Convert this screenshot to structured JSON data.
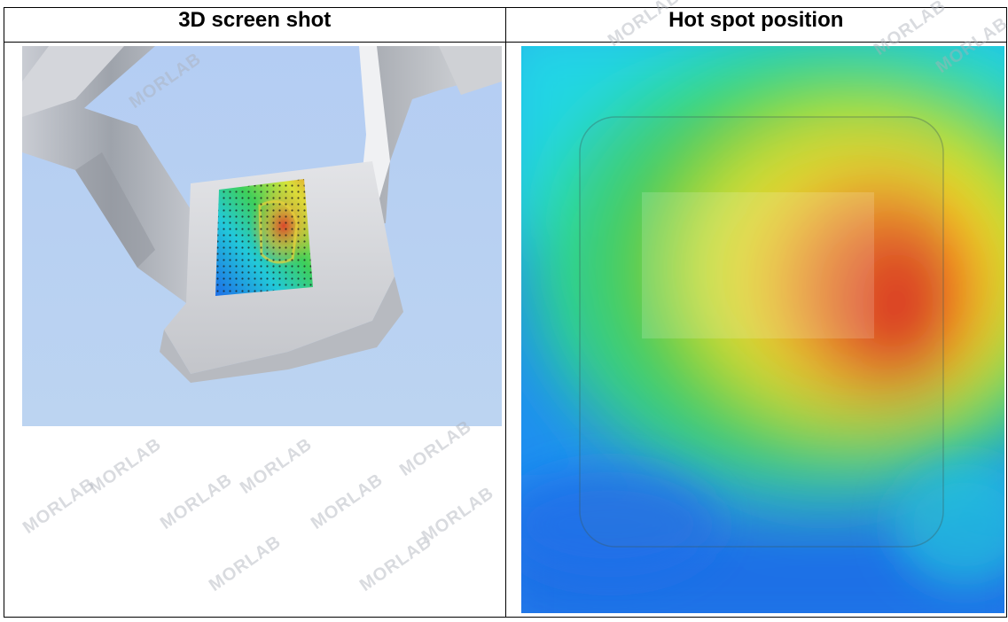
{
  "table": {
    "headers": [
      "3D screen shot",
      "Hot spot position"
    ]
  },
  "watermark": {
    "text": "MORLAB"
  },
  "images": {
    "screenshot_3d": {
      "icon": "3d-phantom-scan-image"
    },
    "hotspot": {
      "icon": "hot-spot-heatmap-image"
    }
  },
  "colors": {
    "background_3d": "#b8d0f2",
    "heat_hot": "#e02020",
    "heat_mid": "#f4f020",
    "heat_cold": "#1a5ce8"
  }
}
